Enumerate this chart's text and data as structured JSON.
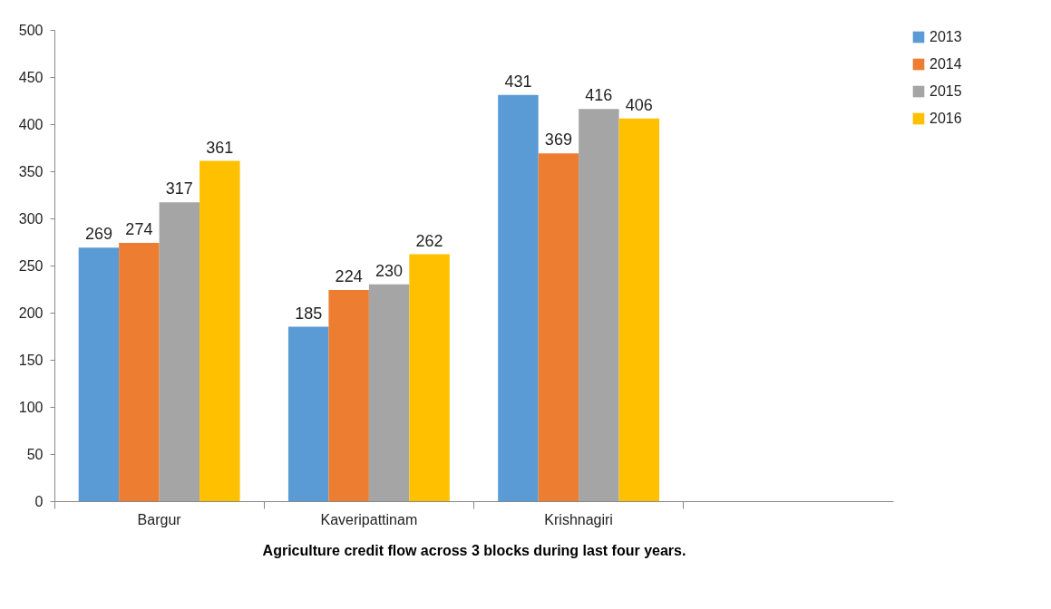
{
  "chart_data": {
    "type": "bar",
    "xlabel": "Agriculture credit flow across 3 blocks during last four years.",
    "categories": [
      "Bargur",
      "Kaveripattinam",
      "Krishnagiri",
      null
    ],
    "series": [
      {
        "name": "2013",
        "color": "#5b9bd5",
        "values": [
          269,
          185,
          431,
          null
        ]
      },
      {
        "name": "2014",
        "color": "#ed7d31",
        "values": [
          274,
          224,
          369,
          null
        ]
      },
      {
        "name": "2015",
        "color": "#a5a5a5",
        "values": [
          317,
          230,
          416,
          null
        ]
      },
      {
        "name": "2016",
        "color": "#ffc000",
        "values": [
          361,
          262,
          406,
          null
        ]
      }
    ],
    "ylim": [
      0,
      500
    ],
    "yticks": [
      0,
      50,
      100,
      150,
      200,
      250,
      300,
      350,
      400,
      450,
      500
    ],
    "grid": false,
    "legend": "right",
    "data_labels": true
  }
}
